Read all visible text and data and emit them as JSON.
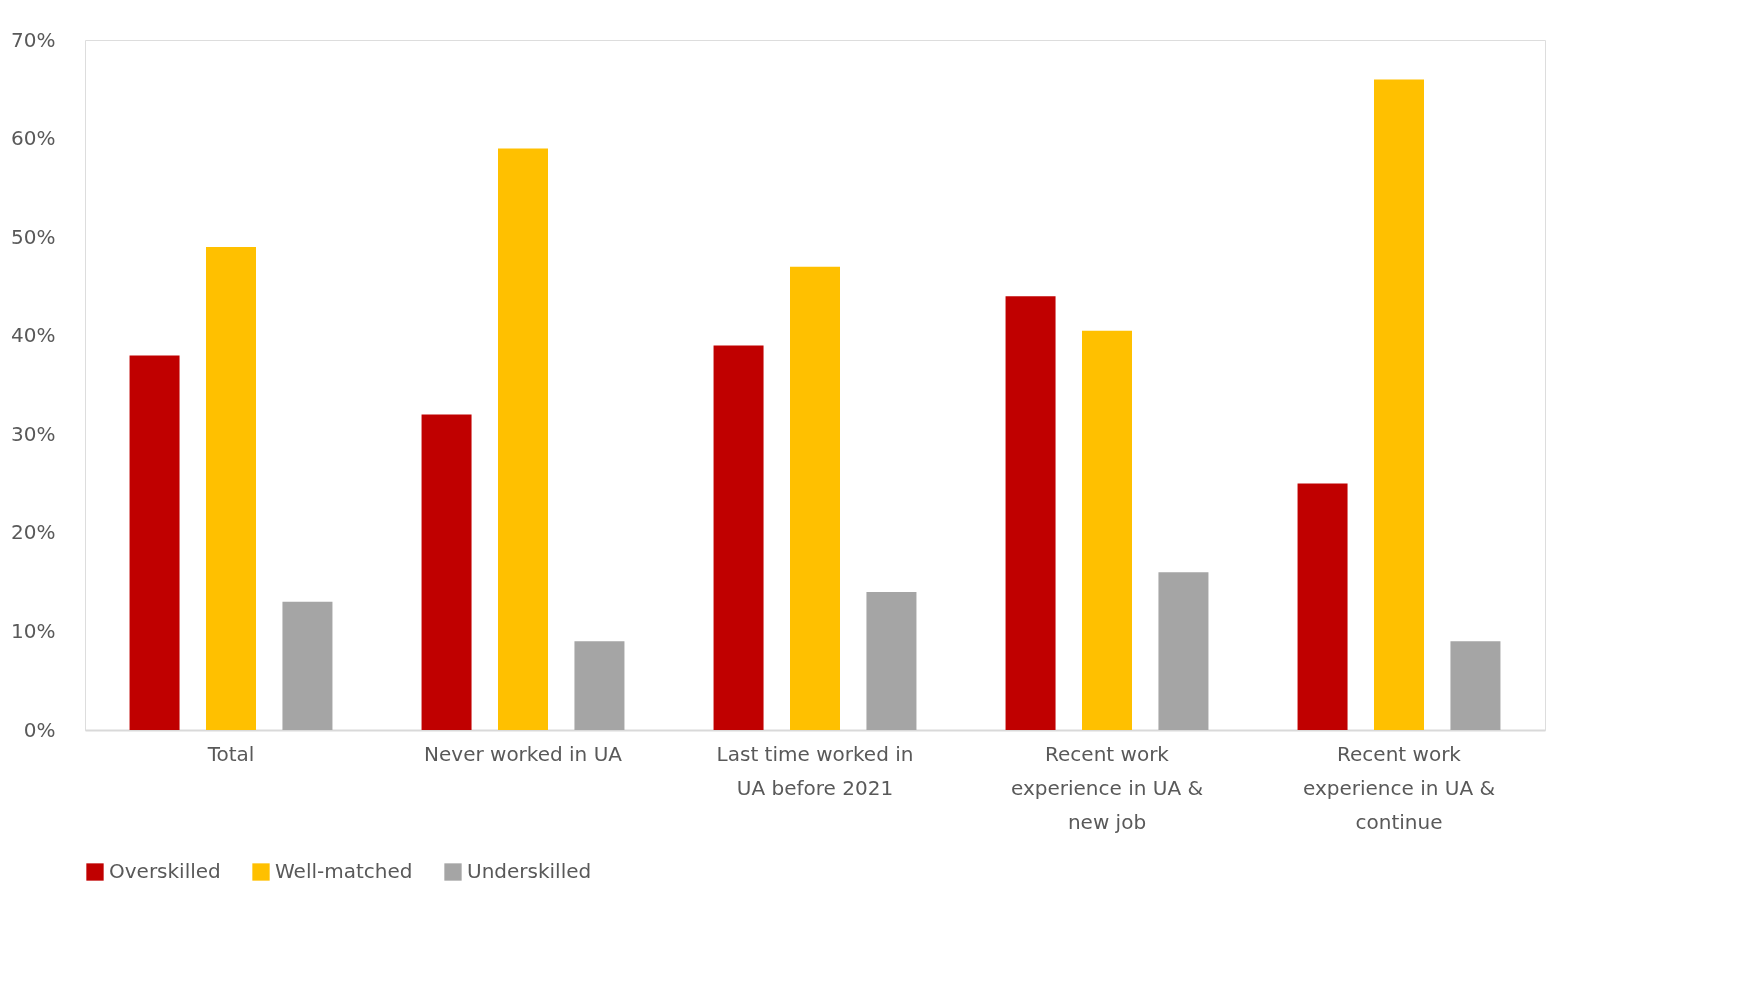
{
  "chart_data": {
    "type": "bar",
    "categories": [
      "Total",
      "Never worked in UA",
      "Last time worked in UA before 2021",
      "Recent work experience in UA & new job",
      "Recent work experience in UA & continue"
    ],
    "series": [
      {
        "name": "Overskilled",
        "color": "#c00000",
        "values": [
          38,
          32,
          39,
          44,
          25
        ]
      },
      {
        "name": "Well-matched",
        "color": "#ffc000",
        "values": [
          49,
          59,
          47,
          40.5,
          66
        ]
      },
      {
        "name": "Underskilled",
        "color": "#a5a5a5",
        "values": [
          13,
          9,
          14,
          16,
          9
        ]
      }
    ],
    "ylim": [
      0,
      70
    ],
    "yticks": [
      {
        "value": 0,
        "label": "0%"
      },
      {
        "value": 10,
        "label": "10%"
      },
      {
        "value": 20,
        "label": "20%"
      },
      {
        "value": 30,
        "label": "30%"
      },
      {
        "value": 40,
        "label": "40%"
      },
      {
        "value": 50,
        "label": "50%"
      },
      {
        "value": 60,
        "label": "60%"
      },
      {
        "value": 70,
        "label": "70%"
      }
    ],
    "grid": false,
    "legend": "bottom"
  }
}
